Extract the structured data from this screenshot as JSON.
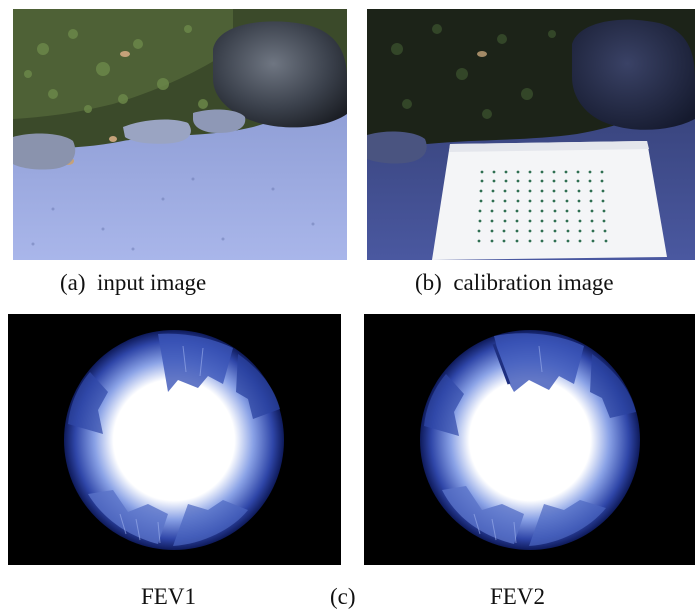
{
  "figure": {
    "panel_a": {
      "label": "(a)",
      "caption": "input image"
    },
    "panel_b": {
      "label": "(b)",
      "caption": "calibration image"
    },
    "panel_c": {
      "label": "(c)",
      "left_caption": "FEV1",
      "right_caption": "FEV2"
    }
  }
}
